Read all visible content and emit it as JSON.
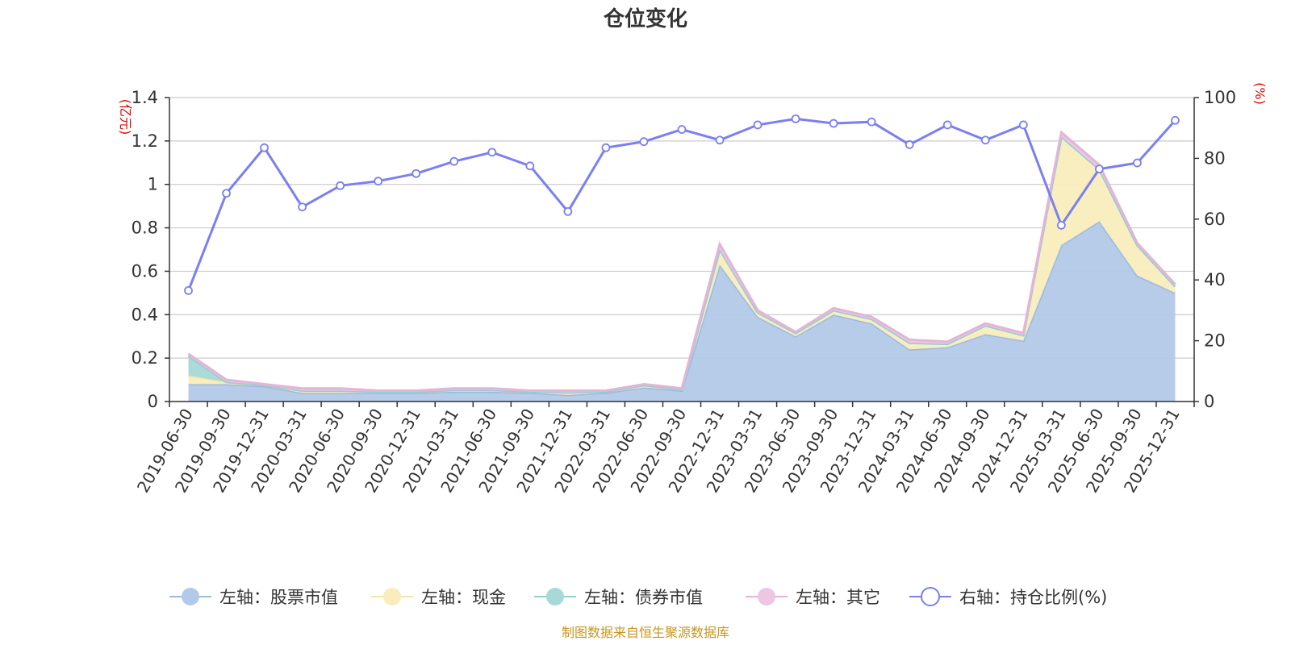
{
  "chart_data": {
    "type": "area",
    "title": "仓位变化",
    "left_axis": {
      "unit_label": "(亿元)",
      "ylim": [
        0,
        1.4
      ],
      "ticks": [
        "0",
        "0.2",
        "0.4",
        "0.6",
        "0.8",
        "1",
        "1.2",
        "1.4"
      ]
    },
    "right_axis": {
      "unit_label": "(%)",
      "ylim": [
        0,
        100
      ],
      "ticks": [
        "0",
        "20",
        "40",
        "60",
        "80",
        "100"
      ]
    },
    "x": [
      "2019-06-30",
      "2019-09-30",
      "2019-12-31",
      "2020-03-31",
      "2020-06-30",
      "2020-09-30",
      "2020-12-31",
      "2021-03-31",
      "2021-06-30",
      "2021-09-30",
      "2021-12-31",
      "2022-03-31",
      "2022-06-30",
      "2022-09-30",
      "2022-12-31",
      "2023-03-31",
      "2023-06-30",
      "2023-09-30",
      "2023-12-31",
      "2024-03-31",
      "2024-06-30",
      "2024-09-30",
      "2024-12-31",
      "2025-03-31",
      "2025-06-30",
      "2025-09-30",
      "2025-12-31"
    ],
    "stacked_series": [
      {
        "name": "左轴：股票市值",
        "axis": "left",
        "color": "#9db9e2",
        "fill": "#b3c9e8",
        "values": [
          0.08,
          0.08,
          0.07,
          0.04,
          0.04,
          0.04,
          0.04,
          0.045,
          0.045,
          0.04,
          0.03,
          0.04,
          0.065,
          0.05,
          0.63,
          0.39,
          0.3,
          0.4,
          0.36,
          0.24,
          0.25,
          0.31,
          0.28,
          0.72,
          0.83,
          0.58,
          0.5
        ]
      },
      {
        "name": "左轴：现金",
        "axis": "left",
        "color": "#f7e4a0",
        "fill": "#f9edbd",
        "values": [
          0.04,
          0.01,
          0.005,
          0.01,
          0.01,
          0.005,
          0.005,
          0.008,
          0.008,
          0.005,
          0.012,
          0.005,
          0.01,
          0.005,
          0.07,
          0.02,
          0.015,
          0.02,
          0.02,
          0.03,
          0.015,
          0.04,
          0.025,
          0.5,
          0.24,
          0.14,
          0.03
        ]
      },
      {
        "name": "左轴：债券市值",
        "axis": "left",
        "color": "#8ed0cf",
        "fill": "#a6d9d7",
        "values": [
          0.09,
          0,
          0,
          0,
          0,
          0,
          0,
          0,
          0,
          0,
          0,
          0,
          0,
          0,
          0,
          0,
          0,
          0,
          0,
          0,
          0,
          0,
          0,
          0,
          0,
          0,
          0
        ]
      },
      {
        "name": "左轴：其它",
        "axis": "left",
        "color": "#e6b3d8",
        "fill": "#ecc6e3",
        "values": [
          0.01,
          0.01,
          0.005,
          0.01,
          0.01,
          0.005,
          0.005,
          0.007,
          0.007,
          0.005,
          0.008,
          0.005,
          0.005,
          0.005,
          0.025,
          0.01,
          0.005,
          0.01,
          0.01,
          0.015,
          0.01,
          0.01,
          0.01,
          0.02,
          0.02,
          0.01,
          0.01
        ]
      }
    ],
    "line_series": {
      "name": "右轴：持仓比例(%)",
      "axis": "right",
      "color": "#7b7ff0",
      "values": [
        36.5,
        68.5,
        83.5,
        64,
        71,
        72.5,
        75,
        79,
        82,
        77.5,
        62.5,
        83.5,
        85.5,
        89.5,
        86,
        91,
        93,
        91.5,
        92,
        84.5,
        91,
        86,
        91,
        58,
        76.5,
        78.5,
        92.5
      ]
    },
    "grid": true,
    "legend_position": "bottom"
  },
  "source_text": "制图数据来自恒生聚源数据库"
}
